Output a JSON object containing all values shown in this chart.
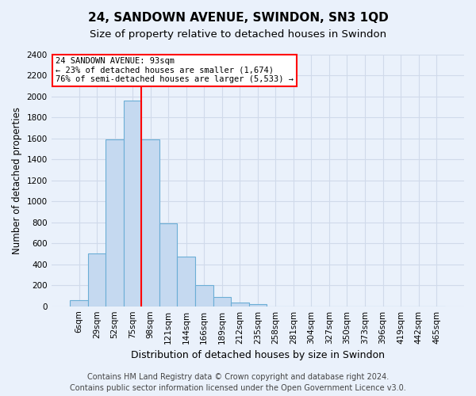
{
  "title": "24, SANDOWN AVENUE, SWINDON, SN3 1QD",
  "subtitle": "Size of property relative to detached houses in Swindon",
  "xlabel": "Distribution of detached houses by size in Swindon",
  "ylabel": "Number of detached properties",
  "categories": [
    "6sqm",
    "29sqm",
    "52sqm",
    "75sqm",
    "98sqm",
    "121sqm",
    "144sqm",
    "166sqm",
    "189sqm",
    "212sqm",
    "235sqm",
    "258sqm",
    "281sqm",
    "304sqm",
    "327sqm",
    "350sqm",
    "373sqm",
    "396sqm",
    "419sqm",
    "442sqm",
    "465sqm"
  ],
  "values": [
    55,
    500,
    1590,
    1960,
    1590,
    790,
    470,
    200,
    90,
    35,
    20,
    0,
    0,
    0,
    0,
    0,
    0,
    0,
    0,
    0,
    0
  ],
  "bar_color": "#c5d9f0",
  "bar_edgecolor": "#6baed6",
  "vline_index": 4,
  "annotation_line1": "24 SANDOWN AVENUE: 93sqm",
  "annotation_line2": "← 23% of detached houses are smaller (1,674)",
  "annotation_line3": "76% of semi-detached houses are larger (5,533) →",
  "annotation_box_color": "white",
  "annotation_box_edgecolor": "red",
  "vline_color": "red",
  "ylim": [
    0,
    2400
  ],
  "yticks": [
    0,
    200,
    400,
    600,
    800,
    1000,
    1200,
    1400,
    1600,
    1800,
    2000,
    2200,
    2400
  ],
  "footer_line1": "Contains HM Land Registry data © Crown copyright and database right 2024.",
  "footer_line2": "Contains public sector information licensed under the Open Government Licence v3.0.",
  "bg_color": "#eaf1fb",
  "plot_bg_color": "#eaf1fb",
  "grid_color": "#d0daea",
  "title_fontsize": 11,
  "subtitle_fontsize": 9.5,
  "ylabel_fontsize": 8.5,
  "xlabel_fontsize": 9,
  "tick_fontsize": 7.5,
  "footer_fontsize": 7
}
